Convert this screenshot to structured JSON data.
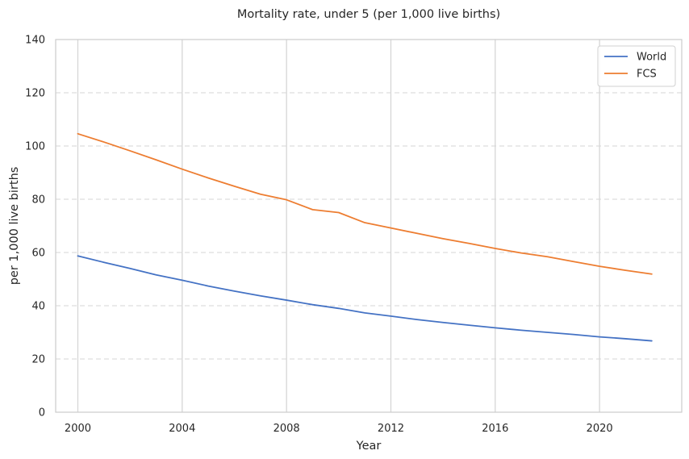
{
  "chart_data": {
    "type": "line",
    "title": "Mortality rate, under 5 (per 1,000 live births)",
    "xlabel": "Year",
    "ylabel": "per 1,000 live births",
    "xlim": [
      1999.15,
      2023.15
    ],
    "ylim": [
      0,
      140
    ],
    "xticks": [
      2000,
      2004,
      2008,
      2012,
      2016,
      2020
    ],
    "yticks": [
      0,
      20,
      40,
      60,
      80,
      100,
      120,
      140
    ],
    "grid": {
      "x": "solid",
      "y": "dashed"
    },
    "legend_position": "top-right",
    "x": [
      2000,
      2001,
      2002,
      2003,
      2004,
      2005,
      2006,
      2007,
      2008,
      2009,
      2010,
      2011,
      2012,
      2013,
      2014,
      2015,
      2016,
      2017,
      2018,
      2019,
      2020,
      2021,
      2022
    ],
    "series": [
      {
        "name": "World",
        "color": "#4472c4",
        "values": [
          58.7,
          56.3,
          54.0,
          51.6,
          49.6,
          47.4,
          45.5,
          43.7,
          42.1,
          40.4,
          39.0,
          37.3,
          36.1,
          34.8,
          33.7,
          32.7,
          31.7,
          30.8,
          30.0,
          29.2,
          28.3,
          27.6,
          26.8
        ]
      },
      {
        "name": "FCS",
        "color": "#ed7d31",
        "values": [
          104.6,
          101.5,
          98.2,
          94.8,
          91.3,
          88.0,
          84.9,
          81.9,
          79.8,
          76.1,
          75.0,
          71.2,
          69.2,
          67.2,
          65.2,
          63.4,
          61.5,
          59.8,
          58.4,
          56.6,
          54.8,
          53.3,
          51.9
        ]
      }
    ]
  }
}
